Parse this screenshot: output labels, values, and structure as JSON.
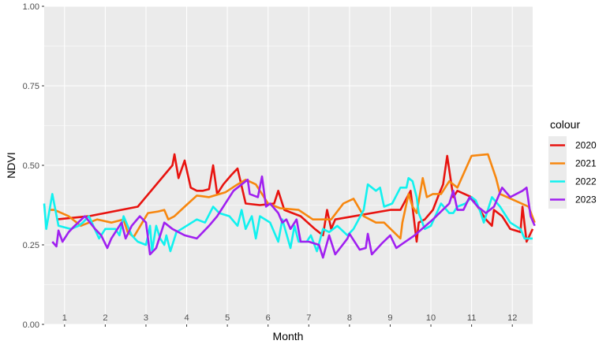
{
  "chart_data": {
    "type": "line",
    "xlabel": "Month",
    "ylabel": "NDVI",
    "xlim": [
      1,
      13
    ],
    "ylim": [
      0,
      1
    ],
    "y_ticks": [
      0,
      0.25,
      0.5,
      0.75,
      1
    ],
    "y_tick_labels": [
      "0.00",
      "0.25",
      "0.50",
      "0.75",
      "1.00"
    ],
    "x_tick_labels": [
      "1",
      "2",
      "3",
      "4",
      "5",
      "6",
      "7",
      "8",
      "9",
      "10",
      "11",
      "12"
    ],
    "grid": true,
    "legend": {
      "title": "colour",
      "position": "right"
    },
    "series": [
      {
        "name": "2020",
        "color": "#e8130f",
        "points": [
          [
            1.3,
            0.33
          ],
          [
            2.1,
            0.34
          ],
          [
            3.3,
            0.37
          ],
          [
            4.15,
            0.5
          ],
          [
            4.2,
            0.535
          ],
          [
            4.3,
            0.46
          ],
          [
            4.45,
            0.515
          ],
          [
            4.6,
            0.43
          ],
          [
            4.75,
            0.42
          ],
          [
            4.9,
            0.42
          ],
          [
            5.05,
            0.425
          ],
          [
            5.15,
            0.5
          ],
          [
            5.25,
            0.41
          ],
          [
            5.4,
            0.44
          ],
          [
            5.6,
            0.47
          ],
          [
            5.75,
            0.49
          ],
          [
            5.95,
            0.38
          ],
          [
            6.3,
            0.375
          ],
          [
            6.65,
            0.38
          ],
          [
            6.75,
            0.42
          ],
          [
            6.9,
            0.36
          ],
          [
            7.3,
            0.34
          ],
          [
            7.65,
            0.3
          ],
          [
            7.85,
            0.28
          ],
          [
            7.95,
            0.36
          ],
          [
            8.05,
            0.3
          ],
          [
            8.15,
            0.33
          ],
          [
            9.5,
            0.36
          ],
          [
            9.75,
            0.36
          ],
          [
            10.0,
            0.42
          ],
          [
            10.15,
            0.26
          ],
          [
            10.2,
            0.32
          ],
          [
            10.35,
            0.33
          ],
          [
            10.55,
            0.36
          ],
          [
            10.7,
            0.41
          ],
          [
            10.8,
            0.44
          ],
          [
            10.9,
            0.53
          ],
          [
            11.05,
            0.4
          ],
          [
            11.15,
            0.42
          ],
          [
            11.5,
            0.4
          ],
          [
            11.85,
            0.33
          ],
          [
            12.0,
            0.31
          ],
          [
            12.05,
            0.36
          ],
          [
            12.25,
            0.34
          ],
          [
            12.45,
            0.3
          ],
          [
            12.7,
            0.29
          ],
          [
            12.75,
            0.37
          ],
          [
            12.85,
            0.26
          ],
          [
            13.0,
            0.3
          ]
        ]
      },
      {
        "name": "2021",
        "color": "#f7870f",
        "points": [
          [
            1.15,
            0.36
          ],
          [
            1.25,
            0.36
          ],
          [
            1.6,
            0.34
          ],
          [
            1.9,
            0.31
          ],
          [
            2.3,
            0.33
          ],
          [
            2.65,
            0.32
          ],
          [
            2.95,
            0.33
          ],
          [
            3.05,
            0.29
          ],
          [
            3.2,
            0.275
          ],
          [
            3.55,
            0.35
          ],
          [
            3.8,
            0.355
          ],
          [
            3.95,
            0.36
          ],
          [
            4.05,
            0.33
          ],
          [
            4.2,
            0.34
          ],
          [
            4.45,
            0.37
          ],
          [
            4.75,
            0.405
          ],
          [
            5.05,
            0.4
          ],
          [
            5.45,
            0.415
          ],
          [
            5.75,
            0.44
          ],
          [
            5.95,
            0.455
          ],
          [
            6.2,
            0.44
          ],
          [
            6.5,
            0.38
          ],
          [
            6.8,
            0.365
          ],
          [
            7.25,
            0.36
          ],
          [
            7.6,
            0.33
          ],
          [
            8.05,
            0.33
          ],
          [
            8.35,
            0.38
          ],
          [
            8.6,
            0.395
          ],
          [
            8.85,
            0.34
          ],
          [
            9.15,
            0.32
          ],
          [
            9.35,
            0.32
          ],
          [
            9.75,
            0.27
          ],
          [
            9.8,
            0.32
          ],
          [
            9.95,
            0.41
          ],
          [
            10.05,
            0.37
          ],
          [
            10.15,
            0.35
          ],
          [
            10.3,
            0.46
          ],
          [
            10.4,
            0.4
          ],
          [
            10.55,
            0.41
          ],
          [
            10.75,
            0.41
          ],
          [
            10.95,
            0.45
          ],
          [
            11.15,
            0.43
          ],
          [
            11.5,
            0.53
          ],
          [
            11.9,
            0.535
          ],
          [
            12.1,
            0.46
          ],
          [
            12.2,
            0.41
          ],
          [
            12.55,
            0.39
          ],
          [
            12.9,
            0.37
          ],
          [
            13.05,
            0.32
          ]
        ]
      },
      {
        "name": "2022",
        "color": "#11f1ef",
        "points": [
          [
            1.0,
            0.38
          ],
          [
            1.05,
            0.3
          ],
          [
            1.2,
            0.41
          ],
          [
            1.35,
            0.31
          ],
          [
            1.65,
            0.3
          ],
          [
            1.85,
            0.31
          ],
          [
            1.95,
            0.32
          ],
          [
            2.1,
            0.34
          ],
          [
            2.35,
            0.27
          ],
          [
            2.5,
            0.3
          ],
          [
            2.75,
            0.3
          ],
          [
            2.85,
            0.28
          ],
          [
            2.95,
            0.34
          ],
          [
            3.15,
            0.28
          ],
          [
            3.3,
            0.26
          ],
          [
            3.5,
            0.25
          ],
          [
            3.6,
            0.31
          ],
          [
            3.65,
            0.23
          ],
          [
            3.75,
            0.31
          ],
          [
            3.85,
            0.27
          ],
          [
            3.95,
            0.25
          ],
          [
            4.0,
            0.28
          ],
          [
            4.1,
            0.23
          ],
          [
            4.25,
            0.29
          ],
          [
            4.5,
            0.31
          ],
          [
            4.75,
            0.33
          ],
          [
            4.95,
            0.32
          ],
          [
            5.15,
            0.37
          ],
          [
            5.3,
            0.35
          ],
          [
            5.55,
            0.34
          ],
          [
            5.75,
            0.31
          ],
          [
            5.85,
            0.36
          ],
          [
            5.95,
            0.3
          ],
          [
            6.1,
            0.34
          ],
          [
            6.2,
            0.27
          ],
          [
            6.3,
            0.34
          ],
          [
            6.55,
            0.32
          ],
          [
            6.75,
            0.26
          ],
          [
            6.85,
            0.33
          ],
          [
            7.05,
            0.24
          ],
          [
            7.15,
            0.31
          ],
          [
            7.25,
            0.26
          ],
          [
            7.45,
            0.26
          ],
          [
            7.55,
            0.28
          ],
          [
            7.7,
            0.23
          ],
          [
            7.85,
            0.3
          ],
          [
            8.0,
            0.29
          ],
          [
            8.2,
            0.31
          ],
          [
            8.45,
            0.28
          ],
          [
            8.6,
            0.3
          ],
          [
            8.85,
            0.36
          ],
          [
            8.95,
            0.44
          ],
          [
            9.15,
            0.42
          ],
          [
            9.25,
            0.43
          ],
          [
            9.35,
            0.37
          ],
          [
            9.55,
            0.38
          ],
          [
            9.75,
            0.43
          ],
          [
            9.9,
            0.43
          ],
          [
            9.95,
            0.46
          ],
          [
            10.05,
            0.45
          ],
          [
            10.15,
            0.4
          ],
          [
            10.2,
            0.35
          ],
          [
            10.35,
            0.3
          ],
          [
            10.5,
            0.31
          ],
          [
            10.75,
            0.38
          ],
          [
            10.95,
            0.35
          ],
          [
            11.05,
            0.35
          ],
          [
            11.15,
            0.37
          ],
          [
            11.35,
            0.38
          ],
          [
            11.5,
            0.4
          ],
          [
            11.6,
            0.39
          ],
          [
            11.7,
            0.36
          ],
          [
            11.8,
            0.32
          ],
          [
            12.0,
            0.4
          ],
          [
            12.2,
            0.37
          ],
          [
            12.45,
            0.32
          ],
          [
            12.7,
            0.3
          ],
          [
            12.8,
            0.27
          ],
          [
            13.0,
            0.27
          ]
        ]
      },
      {
        "name": "2023",
        "color": "#a020f0",
        "points": [
          [
            1.2,
            0.26
          ],
          [
            1.3,
            0.245
          ],
          [
            1.35,
            0.295
          ],
          [
            1.45,
            0.26
          ],
          [
            1.6,
            0.29
          ],
          [
            1.75,
            0.31
          ],
          [
            2.0,
            0.34
          ],
          [
            2.25,
            0.3
          ],
          [
            2.4,
            0.28
          ],
          [
            2.55,
            0.24
          ],
          [
            2.65,
            0.27
          ],
          [
            2.9,
            0.32
          ],
          [
            3.0,
            0.27
          ],
          [
            3.15,
            0.31
          ],
          [
            3.35,
            0.34
          ],
          [
            3.5,
            0.32
          ],
          [
            3.6,
            0.22
          ],
          [
            3.75,
            0.24
          ],
          [
            3.95,
            0.32
          ],
          [
            4.15,
            0.3
          ],
          [
            4.45,
            0.28
          ],
          [
            4.75,
            0.27
          ],
          [
            5.05,
            0.31
          ],
          [
            5.25,
            0.34
          ],
          [
            5.65,
            0.42
          ],
          [
            6.0,
            0.455
          ],
          [
            6.05,
            0.41
          ],
          [
            6.25,
            0.4
          ],
          [
            6.35,
            0.465
          ],
          [
            6.45,
            0.37
          ],
          [
            6.55,
            0.38
          ],
          [
            6.75,
            0.35
          ],
          [
            6.85,
            0.32
          ],
          [
            6.95,
            0.33
          ],
          [
            7.05,
            0.3
          ],
          [
            7.2,
            0.33
          ],
          [
            7.3,
            0.26
          ],
          [
            7.5,
            0.26
          ],
          [
            7.75,
            0.25
          ],
          [
            7.85,
            0.21
          ],
          [
            8.0,
            0.28
          ],
          [
            8.15,
            0.22
          ],
          [
            8.3,
            0.245
          ],
          [
            8.45,
            0.27
          ],
          [
            8.5,
            0.285
          ],
          [
            8.75,
            0.235
          ],
          [
            8.9,
            0.24
          ],
          [
            8.95,
            0.285
          ],
          [
            9.05,
            0.22
          ],
          [
            9.3,
            0.255
          ],
          [
            9.5,
            0.28
          ],
          [
            9.65,
            0.24
          ],
          [
            10.1,
            0.28
          ],
          [
            10.55,
            0.33
          ],
          [
            10.95,
            0.38
          ],
          [
            11.05,
            0.42
          ],
          [
            11.15,
            0.36
          ],
          [
            11.3,
            0.36
          ],
          [
            11.45,
            0.4
          ],
          [
            11.65,
            0.37
          ],
          [
            11.85,
            0.35
          ],
          [
            12.05,
            0.37
          ],
          [
            12.25,
            0.43
          ],
          [
            12.45,
            0.4
          ],
          [
            12.75,
            0.42
          ],
          [
            12.85,
            0.43
          ],
          [
            12.95,
            0.34
          ],
          [
            13.05,
            0.31
          ]
        ]
      }
    ]
  }
}
